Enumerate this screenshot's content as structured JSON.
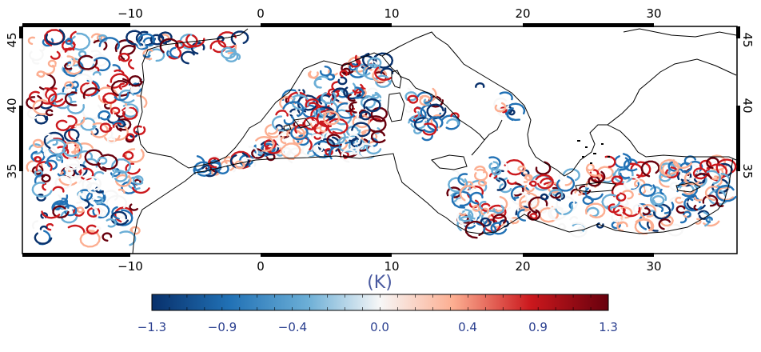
{
  "map": {
    "x_ticks": [
      "-10",
      "0",
      "10",
      "20",
      "30"
    ],
    "y_ticks": [
      "45",
      "40",
      "35"
    ],
    "lon_range": [
      -18,
      36
    ],
    "lat_range": [
      30,
      46
    ],
    "x_tick_values": [
      -10,
      0,
      10,
      20,
      30
    ],
    "y_tick_values": [
      45,
      40,
      35
    ],
    "colormap": "diverging blue-white-red",
    "frame_color": "#000000",
    "coastline_color": "#000000"
  },
  "colorbar": {
    "unit": "(K)",
    "tick_labels": [
      "-1.3",
      "-0.9",
      "-0.4",
      "0.0",
      "0.4",
      "0.9",
      "1.3"
    ],
    "tick_values": [
      -1.3,
      -0.9,
      -0.4,
      0.0,
      0.4,
      0.9,
      1.3
    ],
    "min": -1.3,
    "max": 1.3,
    "colors": [
      "#08306b",
      "#2171b5",
      "#6baed6",
      "#f7f7f7",
      "#fcae91",
      "#cb181d",
      "#67000d"
    ],
    "label_color": "#2a3f8f"
  }
}
